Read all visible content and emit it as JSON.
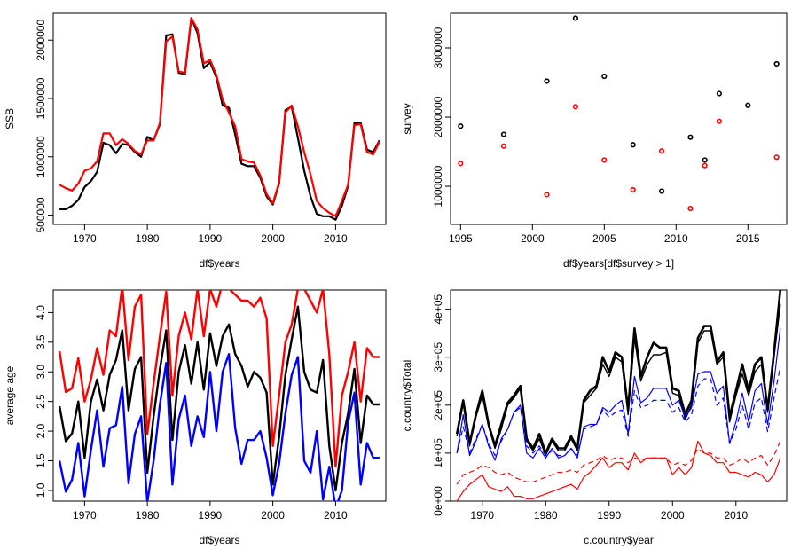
{
  "chart_data": [
    {
      "type": "line",
      "xlabel": "df$years",
      "ylabel": "SSB",
      "xlim": [
        1965,
        2018
      ],
      "ylim": [
        420000,
        2230000
      ],
      "xticks": [
        "1970",
        "1980",
        "1990",
        "2000",
        "2010"
      ],
      "yticks": [
        "500000",
        "1000000",
        "1500000",
        "2000000"
      ],
      "x": [
        1966,
        1967,
        1968,
        1969,
        1970,
        1971,
        1972,
        1973,
        1974,
        1975,
        1976,
        1977,
        1978,
        1979,
        1980,
        1981,
        1982,
        1983,
        1984,
        1985,
        1986,
        1987,
        1988,
        1989,
        1990,
        1991,
        1992,
        1993,
        1994,
        1995,
        1996,
        1997,
        1998,
        1999,
        2000,
        2001,
        2002,
        2003,
        2004,
        2005,
        2006,
        2007,
        2008,
        2009,
        2010,
        2011,
        2012,
        2013,
        2014,
        2015,
        2016,
        2017
      ],
      "series": [
        {
          "color": "#000000",
          "values": [
            550000,
            550000,
            580000,
            630000,
            740000,
            790000,
            870000,
            1120000,
            1100000,
            1030000,
            1110000,
            1100000,
            1040000,
            1000000,
            1170000,
            1140000,
            1280000,
            2040000,
            2050000,
            1720000,
            1710000,
            2190000,
            2060000,
            1760000,
            1810000,
            1680000,
            1440000,
            1420000,
            1190000,
            940000,
            920000,
            920000,
            820000,
            660000,
            590000,
            770000,
            1400000,
            1430000,
            1160000,
            880000,
            660000,
            510000,
            490000,
            490000,
            460000,
            580000,
            750000,
            1290000,
            1290000,
            1060000,
            1040000,
            1140000
          ]
        },
        {
          "color": "#ff0000",
          "values": [
            760000,
            730000,
            710000,
            770000,
            880000,
            900000,
            960000,
            1200000,
            1200000,
            1100000,
            1150000,
            1110000,
            1050000,
            1020000,
            1140000,
            1140000,
            1290000,
            1990000,
            2030000,
            1730000,
            1720000,
            2190000,
            2090000,
            1800000,
            1830000,
            1700000,
            1490000,
            1380000,
            1260000,
            980000,
            960000,
            950000,
            840000,
            680000,
            600000,
            780000,
            1380000,
            1440000,
            1260000,
            1040000,
            850000,
            620000,
            560000,
            520000,
            490000,
            620000,
            760000,
            1270000,
            1280000,
            1040000,
            1020000,
            1130000
          ]
        }
      ]
    },
    {
      "type": "scatter",
      "xlabel": "df$years[df$survey > 1]",
      "ylabel": "survey",
      "xlim": [
        1994.3,
        2017.7
      ],
      "ylim": [
        450000,
        3500000
      ],
      "xticks": [
        "1995",
        "2000",
        "2005",
        "2010",
        "2015"
      ],
      "yticks": [
        "1000000",
        "2000000",
        "3000000"
      ],
      "series": [
        {
          "color": "#000000",
          "x": [
            1995,
            1998,
            2001,
            2003,
            2005,
            2007,
            2009,
            2011,
            2012,
            2013,
            2015,
            2017
          ],
          "values": [
            1870000,
            1750000,
            2520000,
            3430000,
            2590000,
            1600000,
            930000,
            1710000,
            1380000,
            2340000,
            2170000,
            2770000
          ]
        },
        {
          "color": "#ff0000",
          "x": [
            1995,
            1998,
            2001,
            2003,
            2005,
            2007,
            2009,
            2011,
            2012,
            2013,
            2015,
            2017
          ],
          "values": [
            1330000,
            1580000,
            880000,
            2150000,
            1380000,
            950000,
            1510000,
            680000,
            1300000,
            1940000,
            null,
            1420000
          ]
        }
      ]
    },
    {
      "type": "line",
      "xlabel": "df$years",
      "ylabel": "average age",
      "xlim": [
        1965,
        2018
      ],
      "ylim": [
        0.82,
        4.38
      ],
      "xticks": [
        "1970",
        "1980",
        "1990",
        "2000",
        "2010"
      ],
      "yticks": [
        "1.0",
        "1.5",
        "2.0",
        "2.5",
        "3.0",
        "3.5",
        "4.0"
      ],
      "x": [
        1966,
        1967,
        1968,
        1969,
        1970,
        1971,
        1972,
        1973,
        1974,
        1975,
        1976,
        1977,
        1978,
        1979,
        1980,
        1981,
        1982,
        1983,
        1984,
        1985,
        1986,
        1987,
        1988,
        1989,
        1990,
        1991,
        1992,
        1993,
        1994,
        1995,
        1996,
        1997,
        1998,
        1999,
        2000,
        2001,
        2002,
        2003,
        2004,
        2005,
        2006,
        2007,
        2008,
        2009,
        2010,
        2011,
        2012,
        2013,
        2014,
        2015,
        2016,
        2017
      ],
      "series": [
        {
          "color": "#ff0000",
          "values": [
            3.35,
            2.66,
            2.72,
            3.23,
            2.5,
            2.87,
            3.4,
            2.95,
            3.7,
            3.6,
            4.45,
            3.2,
            4.1,
            4.3,
            1.95,
            2.8,
            3.6,
            4.35,
            2.6,
            3.6,
            4.0,
            3.55,
            4.4,
            3.6,
            4.4,
            4.1,
            4.5,
            4.4,
            4.3,
            4.2,
            4.2,
            4.1,
            4.25,
            3.9,
            1.75,
            2.6,
            3.5,
            3.8,
            4.4,
            4.4,
            4.2,
            4.0,
            4.4,
            3.3,
            1.4,
            2.6,
            3.0,
            3.5,
            2.5,
            3.4,
            3.25,
            3.25
          ]
        },
        {
          "color": "#000000",
          "values": [
            2.42,
            1.83,
            1.96,
            2.5,
            1.55,
            2.5,
            2.87,
            2.35,
            2.95,
            3.2,
            3.7,
            2.35,
            3.05,
            3.25,
            1.3,
            2.25,
            3.05,
            3.7,
            1.85,
            3.0,
            3.45,
            2.8,
            3.5,
            2.7,
            3.65,
            3.1,
            3.6,
            3.8,
            3.3,
            3.1,
            2.75,
            3.0,
            2.9,
            2.65,
            1.1,
            1.9,
            2.95,
            3.55,
            4.1,
            3.0,
            2.7,
            2.65,
            3.2,
            1.75,
            1.0,
            1.8,
            2.3,
            3.05,
            1.8,
            2.6,
            2.45,
            2.45
          ]
        },
        {
          "color": "#0000ff",
          "values": [
            1.5,
            0.98,
            1.18,
            1.8,
            0.9,
            1.68,
            2.35,
            1.4,
            2.05,
            2.1,
            2.75,
            1.12,
            1.95,
            2.25,
            0.8,
            1.5,
            2.45,
            3.15,
            1.1,
            2.2,
            2.6,
            1.75,
            2.25,
            1.9,
            3.0,
            2.0,
            3.0,
            3.3,
            2.05,
            1.45,
            1.85,
            1.85,
            2.0,
            1.55,
            0.92,
            1.45,
            2.3,
            2.95,
            3.25,
            1.5,
            1.3,
            2.0,
            0.85,
            1.4,
            0.7,
            1.0,
            2.15,
            2.65,
            1.1,
            1.8,
            1.55,
            1.55
          ]
        }
      ]
    },
    {
      "type": "line",
      "xlabel": "c.country$year",
      "ylabel": "c.country$Total",
      "xlim": [
        1965,
        2018
      ],
      "ylim": [
        0,
        440000
      ],
      "xticks": [
        "1970",
        "1980",
        "1990",
        "2000",
        "2010"
      ],
      "yticks": [
        "0e+00",
        "1e+05",
        "2e+05",
        "3e+05",
        "4e+05"
      ],
      "x": [
        1966,
        1967,
        1968,
        1969,
        1970,
        1971,
        1972,
        1973,
        1974,
        1975,
        1976,
        1977,
        1978,
        1979,
        1980,
        1981,
        1982,
        1983,
        1984,
        1985,
        1986,
        1987,
        1988,
        1989,
        1990,
        1991,
        1992,
        1993,
        1994,
        1995,
        1996,
        1997,
        1998,
        1999,
        2000,
        2001,
        2002,
        2003,
        2004,
        2005,
        2006,
        2007,
        2008,
        2009,
        2010,
        2011,
        2012,
        2013,
        2014,
        2015,
        2016,
        2017
      ],
      "series": [
        {
          "color": "#000000",
          "width": 2.6,
          "dash": false,
          "values": [
            140000,
            210000,
            120000,
            180000,
            230000,
            160000,
            115000,
            160000,
            205000,
            220000,
            240000,
            130000,
            110000,
            140000,
            100000,
            130000,
            110000,
            110000,
            135000,
            110000,
            210000,
            230000,
            240000,
            300000,
            270000,
            310000,
            300000,
            190000,
            360000,
            260000,
            300000,
            330000,
            320000,
            320000,
            235000,
            230000,
            180000,
            210000,
            340000,
            365000,
            365000,
            290000,
            310000,
            175000,
            230000,
            285000,
            230000,
            285000,
            300000,
            190000,
            310000,
            440000
          ]
        },
        {
          "color": "#000000",
          "width": 1.4,
          "dash": false,
          "values": [
            135000,
            205000,
            115000,
            175000,
            220000,
            155000,
            110000,
            150000,
            200000,
            215000,
            235000,
            125000,
            105000,
            130000,
            95000,
            125000,
            105000,
            105000,
            130000,
            105000,
            205000,
            220000,
            235000,
            285000,
            260000,
            300000,
            290000,
            180000,
            340000,
            250000,
            285000,
            305000,
            305000,
            310000,
            225000,
            220000,
            170000,
            200000,
            330000,
            355000,
            355000,
            285000,
            300000,
            165000,
            220000,
            265000,
            220000,
            270000,
            285000,
            185000,
            300000,
            410000
          ]
        },
        {
          "color": "#0000ff",
          "width": 1.2,
          "dash": false,
          "values": [
            100000,
            180000,
            95000,
            125000,
            160000,
            115000,
            85000,
            130000,
            150000,
            185000,
            200000,
            100000,
            90000,
            110000,
            90000,
            110000,
            90000,
            95000,
            110000,
            90000,
            155000,
            160000,
            160000,
            195000,
            185000,
            200000,
            210000,
            140000,
            260000,
            205000,
            215000,
            235000,
            235000,
            235000,
            200000,
            210000,
            175000,
            195000,
            265000,
            270000,
            270000,
            225000,
            240000,
            120000,
            165000,
            225000,
            165000,
            230000,
            245000,
            160000,
            250000,
            360000
          ]
        },
        {
          "color": "#0000ff",
          "width": 1.2,
          "dash": true,
          "values": [
            100000,
            155000,
            100000,
            130000,
            160000,
            120000,
            95000,
            125000,
            150000,
            185000,
            195000,
            115000,
            100000,
            115000,
            95000,
            105000,
            95000,
            95000,
            110000,
            95000,
            150000,
            155000,
            160000,
            190000,
            175000,
            185000,
            190000,
            135000,
            230000,
            195000,
            200000,
            210000,
            210000,
            210000,
            185000,
            195000,
            165000,
            180000,
            240000,
            255000,
            255000,
            200000,
            215000,
            120000,
            150000,
            200000,
            150000,
            205000,
            215000,
            145000,
            215000,
            280000
          ]
        },
        {
          "color": "#ff0000",
          "width": 1.2,
          "dash": false,
          "values": [
            0,
            20000,
            35000,
            45000,
            55000,
            30000,
            25000,
            20000,
            30000,
            10000,
            10000,
            5000,
            5000,
            10000,
            15000,
            20000,
            25000,
            30000,
            35000,
            25000,
            50000,
            60000,
            75000,
            90000,
            70000,
            80000,
            80000,
            65000,
            100000,
            80000,
            90000,
            90000,
            90000,
            90000,
            55000,
            70000,
            55000,
            70000,
            125000,
            100000,
            95000,
            80000,
            80000,
            60000,
            60000,
            55000,
            50000,
            60000,
            55000,
            40000,
            55000,
            90000
          ]
        },
        {
          "color": "#ff0000",
          "width": 1.2,
          "dash": true,
          "values": [
            35000,
            55000,
            60000,
            65000,
            75000,
            70000,
            60000,
            55000,
            60000,
            50000,
            45000,
            40000,
            40000,
            45000,
            50000,
            55000,
            60000,
            60000,
            65000,
            60000,
            75000,
            80000,
            85000,
            95000,
            85000,
            90000,
            90000,
            80000,
            90000,
            85000,
            90000,
            90000,
            90000,
            90000,
            75000,
            80000,
            75000,
            85000,
            110000,
            100000,
            100000,
            90000,
            90000,
            75000,
            80000,
            90000,
            80000,
            90000,
            95000,
            75000,
            95000,
            125000
          ]
        }
      ]
    }
  ]
}
